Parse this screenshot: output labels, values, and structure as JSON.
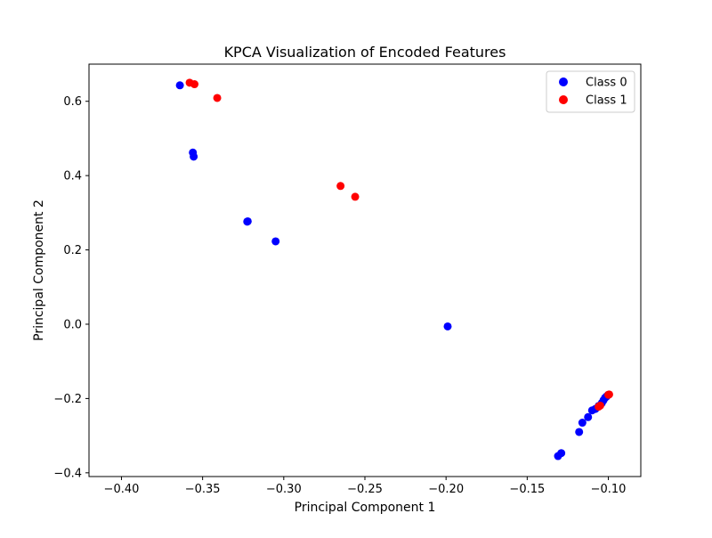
{
  "chart_data": {
    "type": "scatter",
    "title": "KPCA Visualization of Encoded Features",
    "xlabel": "Principal Component 1",
    "ylabel": "Principal Component 2",
    "xlim": [
      -0.42,
      -0.08
    ],
    "ylim": [
      -0.41,
      0.7
    ],
    "xticks": [
      -0.4,
      -0.35,
      -0.3,
      -0.25,
      -0.2,
      -0.15,
      -0.1
    ],
    "xtick_labels": [
      "−0.40",
      "−0.35",
      "−0.30",
      "−0.25",
      "−0.20",
      "−0.15",
      "−0.10"
    ],
    "yticks": [
      -0.4,
      -0.2,
      0.0,
      0.2,
      0.4,
      0.6
    ],
    "ytick_labels": [
      "−0.4",
      "−0.2",
      "0.0",
      "0.2",
      "0.4",
      "0.6"
    ],
    "grid": false,
    "legend_position": "top-right",
    "series": [
      {
        "name": "Class 0",
        "color": "#0000ff",
        "points": [
          [
            -0.364,
            0.643
          ],
          [
            -0.356,
            0.462
          ],
          [
            -0.3555,
            0.451
          ],
          [
            -0.3225,
            0.276
          ],
          [
            -0.3222,
            0.277
          ],
          [
            -0.305,
            0.223
          ],
          [
            -0.199,
            -0.006
          ],
          [
            -0.131,
            -0.355
          ],
          [
            -0.129,
            -0.347
          ],
          [
            -0.118,
            -0.29
          ],
          [
            -0.116,
            -0.265
          ],
          [
            -0.1125,
            -0.25
          ],
          [
            -0.11,
            -0.232
          ],
          [
            -0.108,
            -0.228
          ],
          [
            -0.106,
            -0.22
          ],
          [
            -0.104,
            -0.212
          ],
          [
            -0.103,
            -0.205
          ],
          [
            -0.102,
            -0.198
          ],
          [
            -0.101,
            -0.194
          ],
          [
            -0.1,
            -0.19
          ]
        ]
      },
      {
        "name": "Class 1",
        "color": "#ff0000",
        "points": [
          [
            -0.358,
            0.65
          ],
          [
            -0.355,
            0.646
          ],
          [
            -0.341,
            0.609
          ],
          [
            -0.265,
            0.372
          ],
          [
            -0.256,
            0.343
          ],
          [
            -0.106,
            -0.222
          ],
          [
            -0.105,
            -0.219
          ],
          [
            -0.1,
            -0.19
          ],
          [
            -0.0995,
            -0.189
          ]
        ]
      }
    ]
  }
}
